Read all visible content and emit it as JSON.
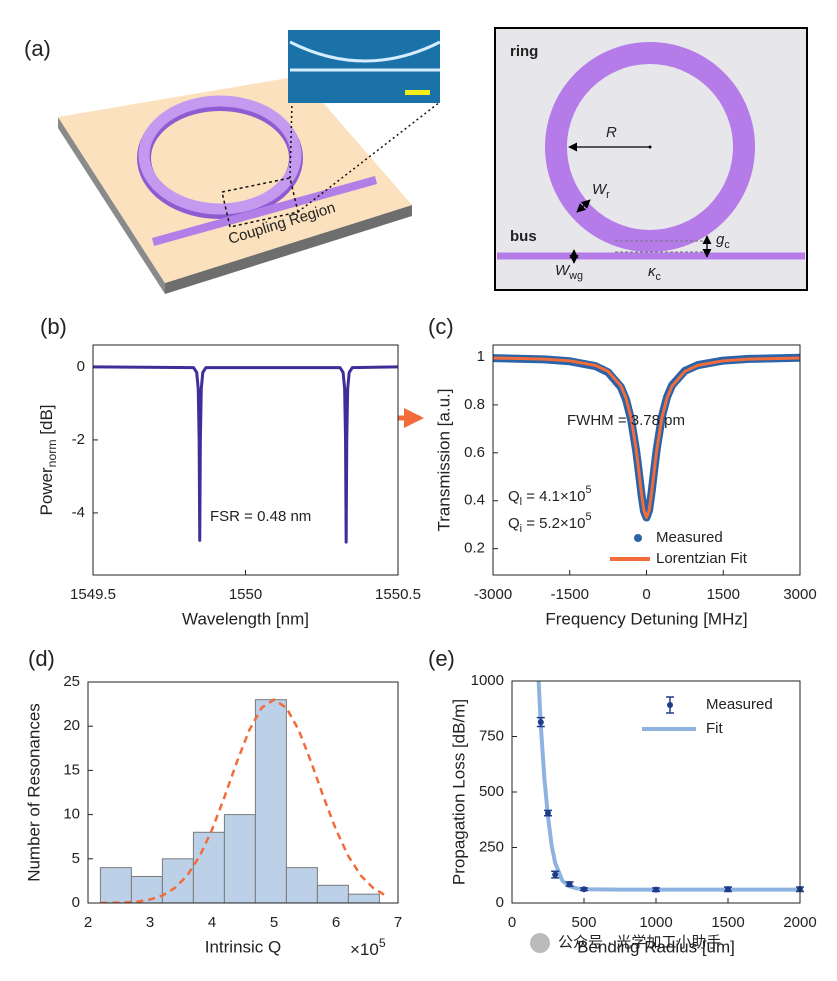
{
  "panel_a": {
    "label": "(a)",
    "coupling": "Coupling Region",
    "schematic": {
      "ring": "ring",
      "bus": "bus",
      "radius": "R",
      "ring_width": {
        "text": "W",
        "sub": "r"
      },
      "gap": {
        "text": "g",
        "sub": "c"
      },
      "wg_width": {
        "text": "W",
        "sub": "wg"
      },
      "coupling": {
        "text": "κ",
        "sub": "c"
      }
    }
  },
  "chart_data": [
    {
      "panel": "(b)",
      "type": "line",
      "xlabel": "Wavelength [nm]",
      "ylabel": {
        "text": "Power",
        "sub": "norm",
        "after": " [dB]"
      },
      "xlim": [
        1549.5,
        1550.5
      ],
      "ylim": [
        -5.7,
        0.6
      ],
      "xticks": [
        1549.5,
        1550,
        1550.5
      ],
      "yticks": [
        -4,
        -2,
        0
      ],
      "series": [
        {
          "color": "#3d2f9a",
          "x": [
            1549.5,
            1549.83,
            1549.84,
            1549.845,
            1549.848,
            1549.85,
            1549.852,
            1549.855,
            1549.86,
            1549.87,
            1550.31,
            1550.32,
            1550.325,
            1550.328,
            1550.33,
            1550.332,
            1550.335,
            1550.34,
            1550.35,
            1550.5
          ],
          "values": [
            0,
            -0.02,
            -0.15,
            -0.6,
            -2,
            -4.75,
            -2,
            -0.6,
            -0.15,
            -0.02,
            -0.02,
            -0.15,
            -0.6,
            -2,
            -4.8,
            -2,
            -0.6,
            -0.15,
            -0.02,
            0
          ]
        }
      ],
      "annotations": [
        "FSR = 0.48 nm"
      ]
    },
    {
      "panel": "(c)",
      "type": "line",
      "xlabel": "Frequency Detuning [MHz]",
      "ylabel": "Transmission [a.u.]",
      "xlim": [
        -3000,
        3000
      ],
      "ylim": [
        0.09,
        1.05
      ],
      "xticks": [
        -3000,
        -1500,
        0,
        1500,
        3000
      ],
      "yticks": [
        0.2,
        0.4,
        0.6,
        0.8,
        1
      ],
      "legend": "lower right",
      "series": [
        {
          "name": "Measured",
          "color": "#2a63a8",
          "marker": true,
          "x": [
            -3000,
            -2000,
            -1500,
            -1000,
            -750,
            -500,
            -400,
            -300,
            -200,
            -150,
            -100,
            -50,
            0,
            50,
            100,
            150,
            200,
            300,
            400,
            500,
            750,
            1000,
            1500,
            2000,
            3000
          ],
          "values": [
            0.995,
            0.99,
            0.982,
            0.962,
            0.936,
            0.874,
            0.822,
            0.738,
            0.605,
            0.52,
            0.43,
            0.357,
            0.33,
            0.36,
            0.436,
            0.527,
            0.615,
            0.75,
            0.832,
            0.882,
            0.942,
            0.966,
            0.985,
            0.992,
            0.997
          ]
        },
        {
          "name": "Lorentzian Fit",
          "color": "#f26b3a",
          "x": [
            -3000,
            -2000,
            -1500,
            -1000,
            -750,
            -500,
            -400,
            -300,
            -200,
            -150,
            -100,
            -50,
            0,
            50,
            100,
            150,
            200,
            300,
            400,
            500,
            750,
            1000,
            1500,
            2000,
            3000
          ],
          "values": [
            0.996,
            0.991,
            0.984,
            0.965,
            0.94,
            0.879,
            0.828,
            0.745,
            0.611,
            0.524,
            0.433,
            0.359,
            0.33,
            0.359,
            0.433,
            0.524,
            0.611,
            0.745,
            0.828,
            0.879,
            0.94,
            0.965,
            0.984,
            0.991,
            0.996
          ]
        }
      ],
      "annotations": [
        "FWHM = 3.78 pm",
        {
          "text": "Q",
          "sub": "l",
          "after": " = 4.1×10",
          "sup": "5"
        },
        {
          "text": "Q",
          "sub": "i",
          "after": " = 5.2×10",
          "sup": "5"
        }
      ]
    },
    {
      "panel": "(d)",
      "type": "histogram",
      "xlabel": "Intrinsic Q",
      "ylabel": "Number of Resonances",
      "xscale_label": {
        "text": "×10",
        "sup": "5"
      },
      "xlim": [
        2,
        7
      ],
      "ylim": [
        0,
        25
      ],
      "xticks": [
        2,
        3,
        4,
        5,
        6,
        7
      ],
      "yticks": [
        0,
        5,
        10,
        15,
        20,
        25
      ],
      "bins": [
        2.2,
        2.7,
        3.2,
        3.7,
        4.2,
        4.7,
        5.2,
        5.7,
        6.2,
        6.7
      ],
      "values": [
        4,
        3,
        5,
        8,
        10,
        23,
        4,
        2,
        1
      ],
      "color": "#bcd0e8",
      "curve": {
        "color": "#f26b3a",
        "x": [
          2.2,
          2.4,
          2.6,
          2.8,
          3.0,
          3.2,
          3.4,
          3.6,
          3.8,
          4.0,
          4.2,
          4.4,
          4.6,
          4.8,
          5.0,
          5.2,
          5.4,
          5.6,
          5.8,
          6.0,
          6.2,
          6.4,
          6.6,
          6.8
        ],
        "values": [
          0.01,
          0.02,
          0.06,
          0.16,
          0.39,
          0.84,
          1.69,
          3.11,
          5.29,
          8.29,
          11.97,
          15.93,
          19.54,
          22.08,
          23,
          22.08,
          19.54,
          15.93,
          11.97,
          8.29,
          5.29,
          3.11,
          1.69,
          0.84
        ]
      }
    },
    {
      "panel": "(e)",
      "type": "errorbar",
      "xlabel": "Bending Radius [um]",
      "ylabel": "Propagation Loss [dB/m]",
      "xlim": [
        0,
        2000
      ],
      "ylim": [
        0,
        1000
      ],
      "xticks": [
        0,
        500,
        1000,
        1500,
        2000
      ],
      "yticks": [
        0,
        250,
        500,
        750,
        1000
      ],
      "legend": "upper right",
      "series": [
        {
          "name": "Measured",
          "color": "#1f3c88",
          "x": [
            200,
            250,
            300,
            400,
            500,
            1000,
            1500,
            2000
          ],
          "values": [
            815,
            405,
            128,
            85,
            62,
            60,
            62,
            62
          ],
          "errors": [
            20,
            12,
            15,
            10,
            6,
            8,
            10,
            10
          ]
        },
        {
          "name": "Fit",
          "color": "#8fb3e0",
          "x": [
            185,
            200,
            225,
            250,
            275,
            300,
            350,
            400,
            450,
            500,
            750,
            1000,
            2000
          ],
          "values": [
            1000,
            800,
            560,
            390,
            260,
            180,
            100,
            75,
            66,
            62,
            60,
            60,
            60
          ]
        }
      ]
    }
  ],
  "watermark": "公众号 · 光学加工小助手"
}
